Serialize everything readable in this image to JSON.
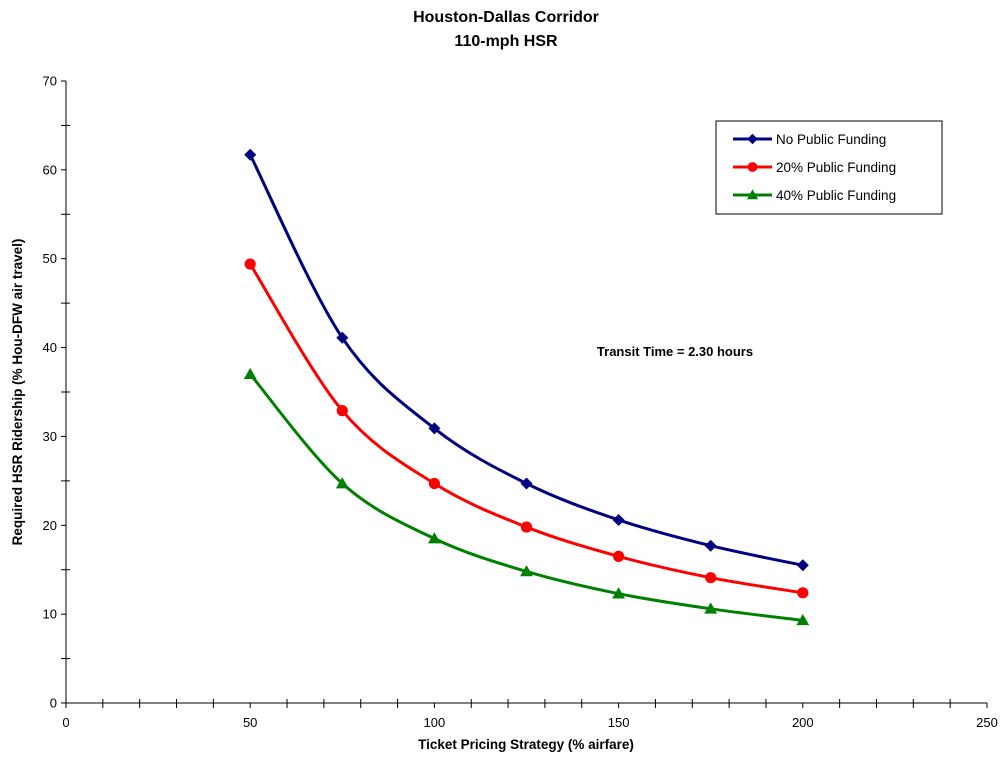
{
  "chart_data": {
    "type": "line",
    "title": "Houston-Dallas Corridor",
    "subtitle": "110-mph HSR",
    "xlabel": "Ticket Pricing Strategy (% airfare)",
    "ylabel": "Required HSR Ridership (% Hou-DFW air travel)",
    "xlim": [
      0,
      250
    ],
    "ylim": [
      0,
      70
    ],
    "x_ticks": [
      0,
      50,
      100,
      150,
      200,
      250
    ],
    "y_ticks": [
      0,
      10,
      20,
      30,
      40,
      50,
      60,
      70
    ],
    "grid": false,
    "legend_placement": "top-right",
    "annotation": "Transit Time = 2.30 hours",
    "x": [
      50,
      75,
      100,
      125,
      150,
      175,
      200
    ],
    "series": [
      {
        "name": "No Public Funding",
        "color": "#000080",
        "marker": "diamond",
        "values": [
          61.7,
          41.1,
          30.9,
          24.7,
          20.6,
          17.7,
          15.5
        ]
      },
      {
        "name": "20% Public Funding",
        "color": "#ff0000",
        "marker": "circle",
        "values": [
          49.4,
          32.9,
          24.7,
          19.8,
          16.5,
          14.1,
          12.4
        ]
      },
      {
        "name": "40% Public Funding",
        "color": "#008000",
        "marker": "triangle",
        "values": [
          37.0,
          24.7,
          18.5,
          14.8,
          12.3,
          10.6,
          9.3
        ]
      }
    ]
  }
}
